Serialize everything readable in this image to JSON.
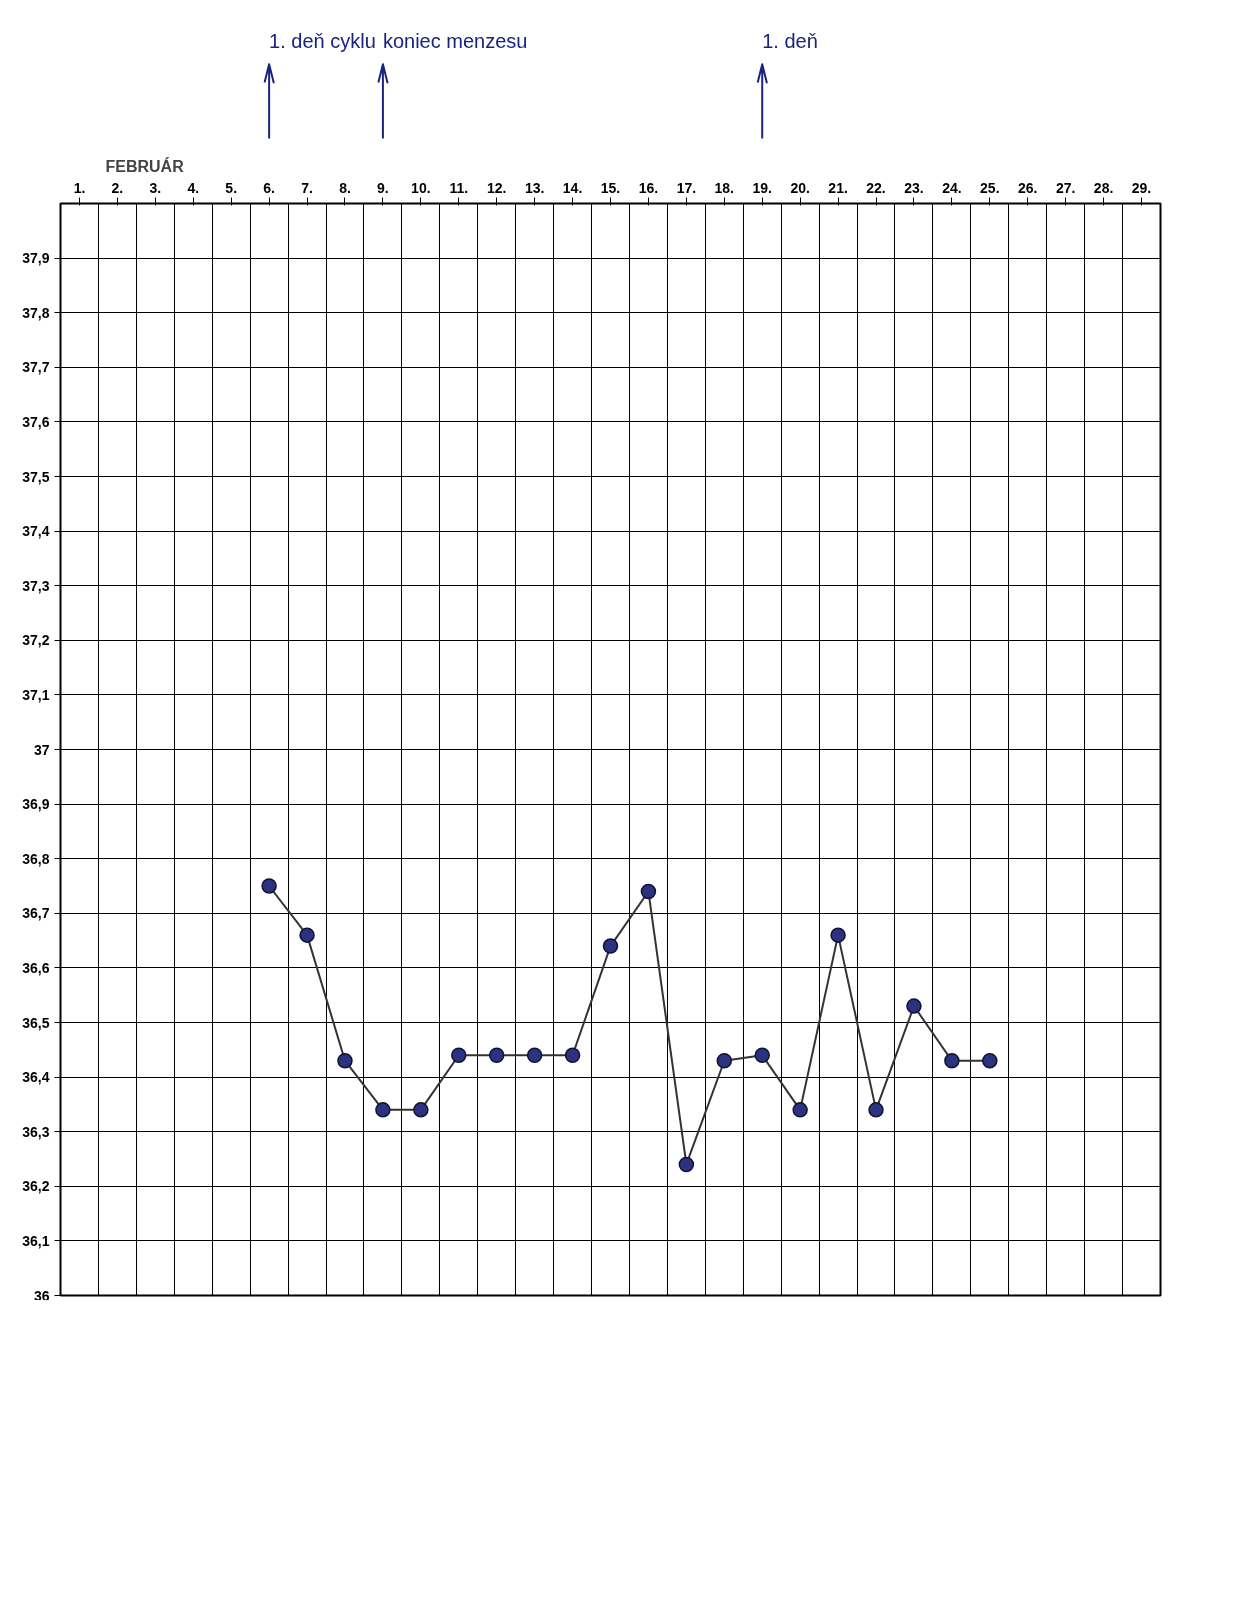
{
  "chart_data": {
    "type": "line",
    "title": "FEBRUÁR",
    "categories": [
      "1.",
      "2.",
      "3.",
      "4.",
      "5.",
      "6.",
      "7.",
      "8.",
      "9.",
      "10.",
      "11.",
      "12.",
      "13.",
      "14.",
      "15.",
      "16.",
      "17.",
      "18.",
      "19.",
      "20.",
      "21.",
      "22.",
      "23.",
      "24.",
      "25.",
      "26.",
      "27.",
      "28.",
      "29."
    ],
    "series": [
      {
        "color": "#2b3380",
        "values": [
          null,
          null,
          null,
          null,
          null,
          36.75,
          36.66,
          36.43,
          36.34,
          36.34,
          36.44,
          36.44,
          36.44,
          36.44,
          36.64,
          36.74,
          36.24,
          36.43,
          36.44,
          36.34,
          36.66,
          36.34,
          36.53,
          36.43,
          36.43,
          null,
          null,
          null,
          null
        ]
      }
    ],
    "ylim": [
      36,
      38
    ],
    "yticks": [
      36,
      {
        "value": 36.1,
        "label": "36,1"
      },
      {
        "value": 36.2,
        "label": "36,2"
      },
      {
        "value": 36.3,
        "label": "36,3"
      },
      {
        "value": 36.4,
        "label": "36,4"
      },
      {
        "value": 36.5,
        "label": "36,5"
      },
      {
        "value": 36.6,
        "label": "36,6"
      },
      {
        "value": 36.7,
        "label": "36,7"
      },
      {
        "value": 36.8,
        "label": "36,8"
      },
      {
        "value": 36.9,
        "label": "36,9"
      },
      37,
      {
        "value": 37.1,
        "label": "37,1"
      },
      {
        "value": 37.2,
        "label": "37,2"
      },
      {
        "value": 37.3,
        "label": "37,3"
      },
      {
        "value": 37.4,
        "label": "37,4"
      },
      {
        "value": 37.5,
        "label": "37,5"
      },
      {
        "value": 37.6,
        "label": "37,6"
      },
      {
        "value": 37.7,
        "label": "37,7"
      },
      {
        "value": 37.8,
        "label": "37,8"
      },
      {
        "value": 37.9,
        "label": "37,9"
      }
    ],
    "ref_lines": [
      {
        "axis": "x",
        "value": "6.",
        "label": "1. deň cyklu",
        "color": "#1a237e"
      },
      {
        "axis": "x",
        "value": "9.",
        "label": "koniec menzesu",
        "color": "#1a237e"
      },
      {
        "axis": "x",
        "value": "19.",
        "label": "1. deň",
        "color": "#1a237e"
      }
    ],
    "grid": true,
    "marker": "circle",
    "line_style": "solid"
  }
}
